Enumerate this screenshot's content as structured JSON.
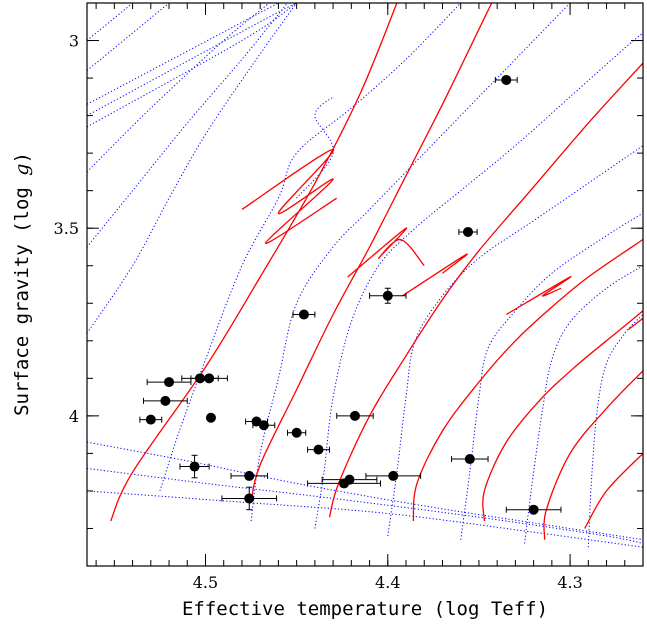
{
  "chart_data": {
    "type": "scatter",
    "xlabel": "Effective temperature (log Teff)",
    "ylabel": "Surface gravity (log g)",
    "ylabel_italic": "g",
    "xlim": [
      4.565,
      4.26
    ],
    "ylim": [
      2.9,
      4.4
    ],
    "x_ticks": [
      4.5,
      4.4,
      4.3
    ],
    "x_tick_labels": [
      "4.5",
      "4.4",
      "4.3"
    ],
    "y_ticks": [
      3,
      3.5,
      4
    ],
    "y_tick_labels": [
      "3",
      "3.5",
      "4"
    ],
    "colors": {
      "tracks": "#ff0000",
      "isochrones": "#0000ff",
      "points": "#000000"
    },
    "stars": [
      {
        "x": 4.335,
        "y": 3.105,
        "xerr": 0.006,
        "yerr": 0
      },
      {
        "x": 4.356,
        "y": 3.51,
        "xerr": 0.005,
        "yerr": 0
      },
      {
        "x": 4.4,
        "y": 3.68,
        "xerr": 0.01,
        "yerr": 0.02
      },
      {
        "x": 4.446,
        "y": 3.73,
        "xerr": 0.006,
        "yerr": 0
      },
      {
        "x": 4.52,
        "y": 3.91,
        "xerr": 0.012,
        "yerr": 0
      },
      {
        "x": 4.503,
        "y": 3.9,
        "xerr": 0.01,
        "yerr": 0
      },
      {
        "x": 4.498,
        "y": 3.9,
        "xerr": 0.01,
        "yerr": 0
      },
      {
        "x": 4.522,
        "y": 3.96,
        "xerr": 0.012,
        "yerr": 0
      },
      {
        "x": 4.53,
        "y": 4.01,
        "xerr": 0.006,
        "yerr": 0
      },
      {
        "x": 4.497,
        "y": 4.005,
        "xerr": 0,
        "yerr": 0
      },
      {
        "x": 4.472,
        "y": 4.015,
        "xerr": 0.006,
        "yerr": 0
      },
      {
        "x": 4.468,
        "y": 4.025,
        "xerr": 0.006,
        "yerr": 0
      },
      {
        "x": 4.45,
        "y": 4.045,
        "xerr": 0.005,
        "yerr": 0
      },
      {
        "x": 4.438,
        "y": 4.09,
        "xerr": 0.006,
        "yerr": 0
      },
      {
        "x": 4.418,
        "y": 4.0,
        "xerr": 0.01,
        "yerr": 0
      },
      {
        "x": 4.506,
        "y": 4.135,
        "xerr": 0.008,
        "yerr": 0.03
      },
      {
        "x": 4.476,
        "y": 4.16,
        "xerr": 0.01,
        "yerr": 0
      },
      {
        "x": 4.476,
        "y": 4.22,
        "xerr": 0.015,
        "yerr": 0.03
      },
      {
        "x": 4.424,
        "y": 4.18,
        "xerr": 0.02,
        "yerr": 0
      },
      {
        "x": 4.421,
        "y": 4.17,
        "xerr": 0.015,
        "yerr": 0
      },
      {
        "x": 4.397,
        "y": 4.16,
        "xerr": 0.015,
        "yerr": 0
      },
      {
        "x": 4.355,
        "y": 4.115,
        "xerr": 0.01,
        "yerr": 0
      },
      {
        "x": 4.32,
        "y": 4.25,
        "xerr": 0.015,
        "yerr": 0
      }
    ],
    "tracks": [
      [
        [
          4.552,
          4.28
        ],
        [
          4.54,
          4.15
        ],
        [
          4.5,
          3.87
        ],
        [
          4.47,
          3.63
        ],
        [
          4.44,
          3.38
        ],
        [
          4.415,
          3.14
        ],
        [
          4.395,
          2.9
        ]
      ],
      [
        [
          4.475,
          4.23
        ],
        [
          4.47,
          4.13
        ],
        [
          4.45,
          3.93
        ],
        [
          4.43,
          3.73
        ],
        [
          4.41,
          3.55
        ],
        [
          4.39,
          3.36
        ],
        [
          4.37,
          3.17
        ],
        [
          4.35,
          2.97
        ],
        [
          4.343,
          2.9
        ]
      ],
      [
        [
          4.432,
          4.27
        ],
        [
          4.427,
          4.18
        ],
        [
          4.41,
          4.0
        ],
        [
          4.39,
          3.84
        ],
        [
          4.37,
          3.69
        ],
        [
          4.35,
          3.56
        ],
        [
          4.32,
          3.39
        ],
        [
          4.29,
          3.22
        ],
        [
          4.26,
          3.06
        ]
      ],
      [
        [
          4.386,
          4.28
        ],
        [
          4.384,
          4.18
        ],
        [
          4.37,
          4.04
        ],
        [
          4.35,
          3.91
        ],
        [
          4.33,
          3.8
        ],
        [
          4.31,
          3.71
        ],
        [
          4.29,
          3.63
        ],
        [
          4.26,
          3.53
        ]
      ],
      [
        [
          4.347,
          4.28
        ],
        [
          4.347,
          4.2
        ],
        [
          4.335,
          4.07
        ],
        [
          4.315,
          3.95
        ],
        [
          4.295,
          3.86
        ],
        [
          4.275,
          3.78
        ],
        [
          4.26,
          3.72
        ]
      ],
      [
        [
          4.314,
          4.33
        ],
        [
          4.313,
          4.25
        ],
        [
          4.3,
          4.1
        ],
        [
          4.28,
          3.98
        ],
        [
          4.26,
          3.88
        ]
      ],
      [
        [
          4.292,
          4.3
        ],
        [
          4.28,
          4.2
        ],
        [
          4.26,
          4.1
        ]
      ],
      [
        [
          4.48,
          3.45
        ],
        [
          4.43,
          3.29
        ],
        [
          4.46,
          3.46
        ],
        [
          4.43,
          3.37
        ],
        [
          4.467,
          3.54
        ],
        [
          4.428,
          3.42
        ]
      ],
      [
        [
          4.422,
          3.63
        ],
        [
          4.39,
          3.5
        ],
        [
          4.405,
          3.58
        ],
        [
          4.393,
          3.53
        ],
        [
          4.38,
          3.6
        ]
      ],
      [
        [
          4.392,
          3.68
        ],
        [
          4.357,
          3.57
        ],
        [
          4.37,
          3.62
        ]
      ],
      [
        [
          4.335,
          3.73
        ],
        [
          4.3,
          3.63
        ],
        [
          4.315,
          3.68
        ],
        [
          4.305,
          3.66
        ]
      ],
      [
        [
          4.268,
          3.77
        ],
        [
          4.26,
          3.74
        ]
      ]
    ],
    "isochrones": [
      [
        [
          4.565,
          3.23
        ],
        [
          4.48,
          3.0
        ],
        [
          4.45,
          2.9
        ]
      ],
      [
        [
          4.565,
          3.2
        ],
        [
          4.47,
          2.95
        ],
        [
          4.45,
          2.9
        ]
      ],
      [
        [
          4.565,
          3.17
        ],
        [
          4.46,
          2.9
        ]
      ],
      [
        [
          4.565,
          3.08
        ],
        [
          4.52,
          2.9
        ]
      ],
      [
        [
          4.565,
          3.0
        ],
        [
          4.54,
          2.9
        ]
      ],
      [
        [
          4.565,
          4.07
        ],
        [
          4.51,
          4.12
        ],
        [
          4.45,
          4.18
        ],
        [
          4.38,
          4.24
        ],
        [
          4.3,
          4.3
        ],
        [
          4.26,
          4.33
        ]
      ],
      [
        [
          4.565,
          4.14
        ],
        [
          4.5,
          4.18
        ],
        [
          4.43,
          4.22
        ],
        [
          4.35,
          4.27
        ],
        [
          4.28,
          4.32
        ],
        [
          4.26,
          4.34
        ]
      ],
      [
        [
          4.565,
          4.2
        ],
        [
          4.48,
          4.23
        ],
        [
          4.4,
          4.26
        ],
        [
          4.32,
          4.31
        ],
        [
          4.26,
          4.35
        ]
      ],
      [
        [
          4.565,
          3.78
        ],
        [
          4.54,
          3.6
        ],
        [
          4.52,
          3.42
        ],
        [
          4.5,
          3.25
        ],
        [
          4.475,
          3.07
        ],
        [
          4.45,
          2.9
        ]
      ],
      [
        [
          4.565,
          3.55
        ],
        [
          4.54,
          3.4
        ],
        [
          4.51,
          3.22
        ],
        [
          4.48,
          3.05
        ],
        [
          4.455,
          2.9
        ]
      ],
      [
        [
          4.565,
          3.35
        ],
        [
          4.53,
          3.18
        ],
        [
          4.49,
          3.0
        ],
        [
          4.465,
          2.9
        ]
      ],
      [
        [
          4.525,
          4.2
        ],
        [
          4.515,
          4.05
        ],
        [
          4.5,
          3.85
        ],
        [
          4.48,
          3.6
        ],
        [
          4.46,
          3.42
        ],
        [
          4.45,
          3.3
        ],
        [
          4.42,
          3.18
        ],
        [
          4.39,
          3.05
        ],
        [
          4.36,
          2.9
        ]
      ],
      [
        [
          4.475,
          4.28
        ],
        [
          4.47,
          4.1
        ],
        [
          4.46,
          3.9
        ],
        [
          4.45,
          3.7
        ],
        [
          4.43,
          3.55
        ],
        [
          4.41,
          3.45
        ],
        [
          4.38,
          3.3
        ],
        [
          4.35,
          3.15
        ],
        [
          4.32,
          3.0
        ],
        [
          4.3,
          2.9
        ]
      ],
      [
        [
          4.44,
          4.3
        ],
        [
          4.435,
          4.15
        ],
        [
          4.43,
          3.95
        ],
        [
          4.42,
          3.75
        ],
        [
          4.405,
          3.6
        ],
        [
          4.385,
          3.5
        ],
        [
          4.36,
          3.4
        ],
        [
          4.33,
          3.28
        ],
        [
          4.3,
          3.15
        ],
        [
          4.27,
          3.02
        ],
        [
          4.26,
          2.98
        ]
      ],
      [
        [
          4.4,
          4.32
        ],
        [
          4.395,
          4.15
        ],
        [
          4.39,
          3.95
        ],
        [
          4.385,
          3.8
        ],
        [
          4.37,
          3.68
        ],
        [
          4.35,
          3.58
        ],
        [
          4.32,
          3.48
        ],
        [
          4.29,
          3.38
        ],
        [
          4.26,
          3.28
        ]
      ],
      [
        [
          4.36,
          4.33
        ],
        [
          4.355,
          4.15
        ],
        [
          4.35,
          3.95
        ],
        [
          4.345,
          3.82
        ],
        [
          4.33,
          3.72
        ],
        [
          4.31,
          3.62
        ],
        [
          4.28,
          3.52
        ],
        [
          4.26,
          3.46
        ]
      ],
      [
        [
          4.325,
          4.34
        ],
        [
          4.32,
          4.15
        ],
        [
          4.315,
          3.98
        ],
        [
          4.31,
          3.85
        ],
        [
          4.3,
          3.75
        ],
        [
          4.28,
          3.66
        ],
        [
          4.26,
          3.6
        ]
      ],
      [
        [
          4.29,
          4.35
        ],
        [
          4.288,
          4.15
        ],
        [
          4.285,
          3.98
        ],
        [
          4.28,
          3.86
        ],
        [
          4.27,
          3.78
        ],
        [
          4.26,
          3.73
        ]
      ],
      [
        [
          4.45,
          3.42
        ],
        [
          4.43,
          3.3
        ],
        [
          4.44,
          3.2
        ],
        [
          4.43,
          3.15
        ]
      ]
    ]
  }
}
